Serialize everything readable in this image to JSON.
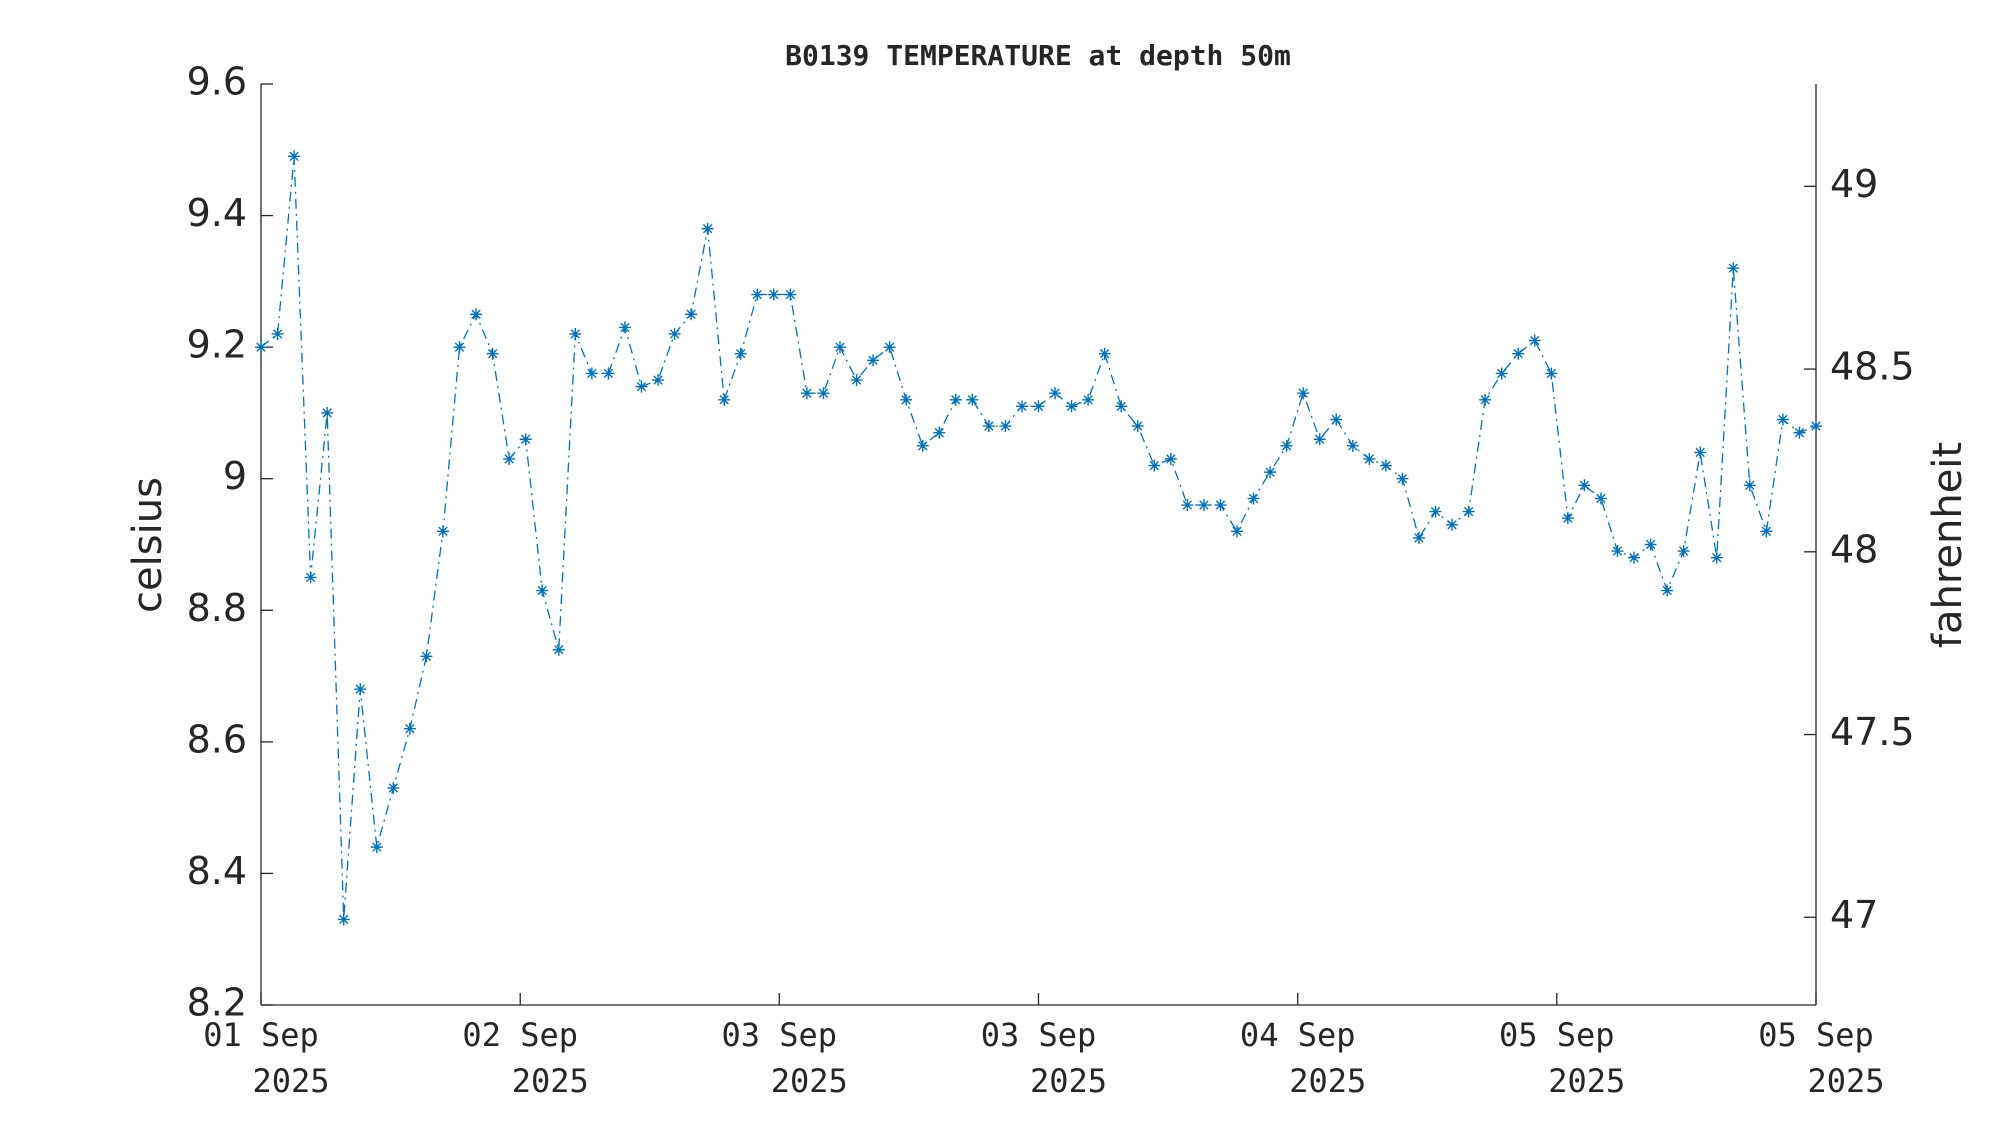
{
  "chart_data": {
    "type": "line",
    "title": "B0139 TEMPERATURE at depth 50m",
    "ylabel": "celsius",
    "y2label": "fahrenheit",
    "x": [
      0,
      1,
      2,
      3,
      4,
      5,
      6,
      7,
      8,
      9,
      10,
      11,
      12,
      13,
      14,
      15,
      16,
      17,
      18,
      19,
      20,
      21,
      22,
      23,
      24,
      25,
      26,
      27,
      28,
      29,
      30,
      31,
      32,
      33,
      34,
      35,
      36,
      37,
      38,
      39,
      40,
      41,
      42,
      43,
      44,
      45,
      46,
      47,
      48,
      49,
      50,
      51,
      52,
      53,
      54,
      55,
      56,
      57,
      58,
      59,
      60,
      61,
      62,
      63,
      64,
      65,
      66,
      67,
      68,
      69,
      70,
      71,
      72,
      73,
      74,
      75,
      76,
      77,
      78,
      79,
      80,
      81,
      82,
      83,
      84,
      85,
      86,
      87,
      88,
      89,
      90,
      91,
      92,
      93,
      94
    ],
    "series": [
      {
        "name": "celsius",
        "color": "#0072bd",
        "values": [
          9.2,
          9.22,
          9.49,
          8.85,
          9.1,
          8.33,
          8.68,
          8.44,
          8.53,
          8.62,
          8.73,
          8.92,
          9.2,
          9.25,
          9.19,
          9.03,
          9.06,
          8.83,
          8.74,
          9.22,
          9.16,
          9.16,
          9.23,
          9.14,
          9.15,
          9.22,
          9.25,
          9.38,
          9.12,
          9.19,
          9.28,
          9.28,
          9.28,
          9.13,
          9.13,
          9.2,
          9.15,
          9.18,
          9.2,
          9.12,
          9.05,
          9.07,
          9.12,
          9.12,
          9.08,
          9.08,
          9.11,
          9.11,
          9.13,
          9.11,
          9.12,
          9.19,
          9.11,
          9.08,
          9.02,
          9.03,
          8.96,
          8.96,
          8.96,
          8.92,
          8.97,
          9.01,
          9.05,
          9.13,
          9.06,
          9.09,
          9.05,
          9.03,
          9.02,
          9.0,
          8.91,
          8.95,
          8.93,
          8.95,
          9.12,
          9.16,
          9.19,
          9.21,
          9.16,
          8.94,
          8.99,
          8.97,
          8.89,
          8.88,
          8.9,
          8.83,
          8.89,
          9.04,
          8.88,
          9.32,
          8.99,
          8.92,
          9.09,
          9.07,
          9.08
        ]
      }
    ],
    "xlim": [
      0,
      94
    ],
    "xticks": [
      {
        "value": 0,
        "label": "01 Sep 2025"
      },
      {
        "value": 15.67,
        "label": "02 Sep 2025"
      },
      {
        "value": 31.33,
        "label": "03 Sep 2025"
      },
      {
        "value": 47,
        "label": "03 Sep 2025"
      },
      {
        "value": 62.67,
        "label": "04 Sep 2025"
      },
      {
        "value": 78.33,
        "label": "05 Sep 2025"
      },
      {
        "value": 94,
        "label": "05 Sep 2025"
      }
    ],
    "ylim": [
      8.2,
      9.6
    ],
    "yticks": [
      8.2,
      8.4,
      8.6,
      8.8,
      9,
      9.2,
      9.4,
      9.6
    ],
    "y2lim": [
      46.76,
      49.28
    ],
    "y2ticks": [
      47,
      47.5,
      48,
      48.5,
      49
    ]
  }
}
